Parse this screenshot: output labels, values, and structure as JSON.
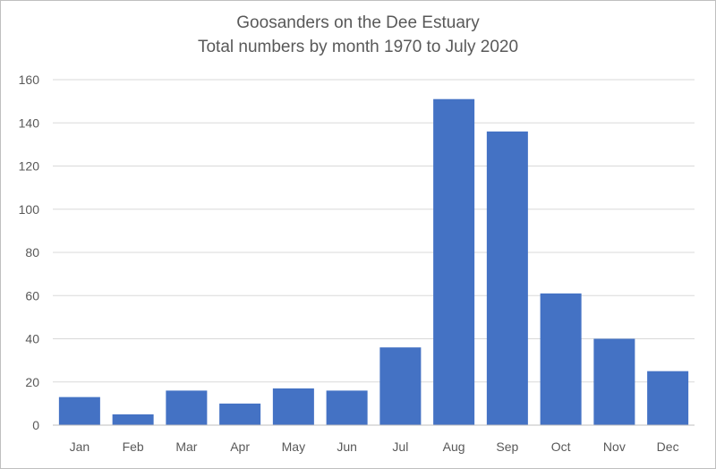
{
  "chart_data": {
    "type": "bar",
    "title": "Goosanders on the Dee Estuary",
    "subtitle": "Total numbers by month 1970 to July 2020",
    "xlabel": "",
    "ylabel": "",
    "categories": [
      "Jan",
      "Feb",
      "Mar",
      "Apr",
      "May",
      "Jun",
      "Jul",
      "Aug",
      "Sep",
      "Oct",
      "Nov",
      "Dec"
    ],
    "values": [
      13,
      5,
      16,
      10,
      17,
      16,
      36,
      151,
      136,
      61,
      40,
      25
    ],
    "ylim": [
      0,
      160
    ],
    "yticks": [
      0,
      20,
      40,
      60,
      80,
      100,
      120,
      140,
      160
    ],
    "grid": true,
    "legend": "none",
    "bar_color": "#4472c4"
  }
}
